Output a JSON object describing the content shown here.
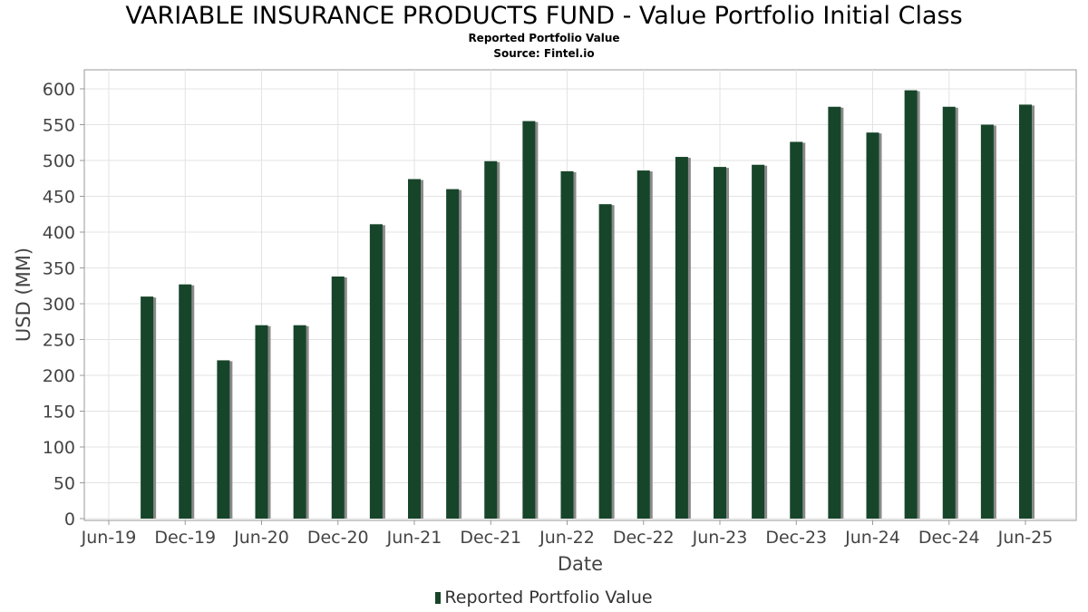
{
  "chart_data": {
    "type": "bar",
    "title": "VARIABLE INSURANCE PRODUCTS FUND - Value Portfolio Initial Class",
    "subtitles": [
      "Reported Portfolio Value",
      "Source: Fintel.io"
    ],
    "xlabel": "Date",
    "ylabel": "USD (MM)",
    "ylim": [
      0,
      620
    ],
    "yticks": [
      0,
      50,
      100,
      150,
      200,
      250,
      300,
      350,
      400,
      450,
      500,
      550,
      600
    ],
    "xticks": [
      "Jun-19",
      "Dec-19",
      "Jun-20",
      "Dec-20",
      "Jun-21",
      "Dec-21",
      "Jun-22",
      "Dec-22",
      "Jun-23",
      "Dec-23",
      "Jun-24",
      "Dec-24",
      "Jun-25"
    ],
    "xtick_months": [
      "2019-06",
      "2019-12",
      "2020-06",
      "2020-12",
      "2021-06",
      "2021-12",
      "2022-06",
      "2022-12",
      "2023-06",
      "2023-12",
      "2024-06",
      "2024-12",
      "2025-06"
    ],
    "xlim": [
      "2019-05",
      "2025-11"
    ],
    "grid": true,
    "legend_position": "bottom",
    "bar_color": "#17452a",
    "series": [
      {
        "name": "Reported Portfolio Value",
        "x": [
          "2019-09",
          "2019-12",
          "2020-03",
          "2020-06",
          "2020-09",
          "2020-12",
          "2021-03",
          "2021-06",
          "2021-09",
          "2021-12",
          "2022-03",
          "2022-06",
          "2022-09",
          "2022-12",
          "2023-03",
          "2023-06",
          "2023-09",
          "2023-12",
          "2024-03",
          "2024-06",
          "2024-09",
          "2024-12",
          "2025-03",
          "2025-06"
        ],
        "values": [
          310,
          327,
          221,
          270,
          270,
          338,
          411,
          474,
          460,
          499,
          555,
          485,
          439,
          486,
          505,
          491,
          494,
          526,
          575,
          539,
          598,
          575,
          550,
          578
        ]
      }
    ]
  }
}
